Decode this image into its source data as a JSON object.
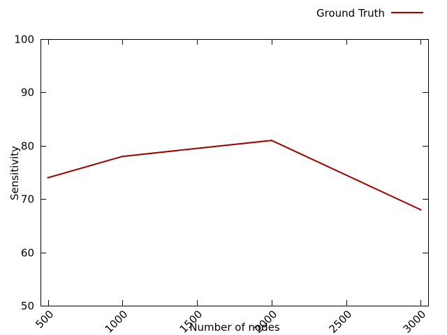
{
  "chart_data": {
    "type": "line",
    "title": "",
    "xlabel": "Number of nodes",
    "ylabel": "Sensitivity",
    "xlim": [
      450,
      3050
    ],
    "ylim": [
      50,
      100
    ],
    "x_ticks": [
      "500",
      "1000",
      "1500",
      "2000",
      "2500",
      "3000"
    ],
    "y_ticks": [
      "50",
      "60",
      "70",
      "80",
      "90",
      "100"
    ],
    "grid": false,
    "legend_position": "top-right",
    "series": [
      {
        "name": "Ground Truth",
        "color": "#a00000",
        "x": [
          500,
          1000,
          2000,
          3000
        ],
        "y": [
          74,
          78,
          81,
          68
        ]
      }
    ]
  }
}
